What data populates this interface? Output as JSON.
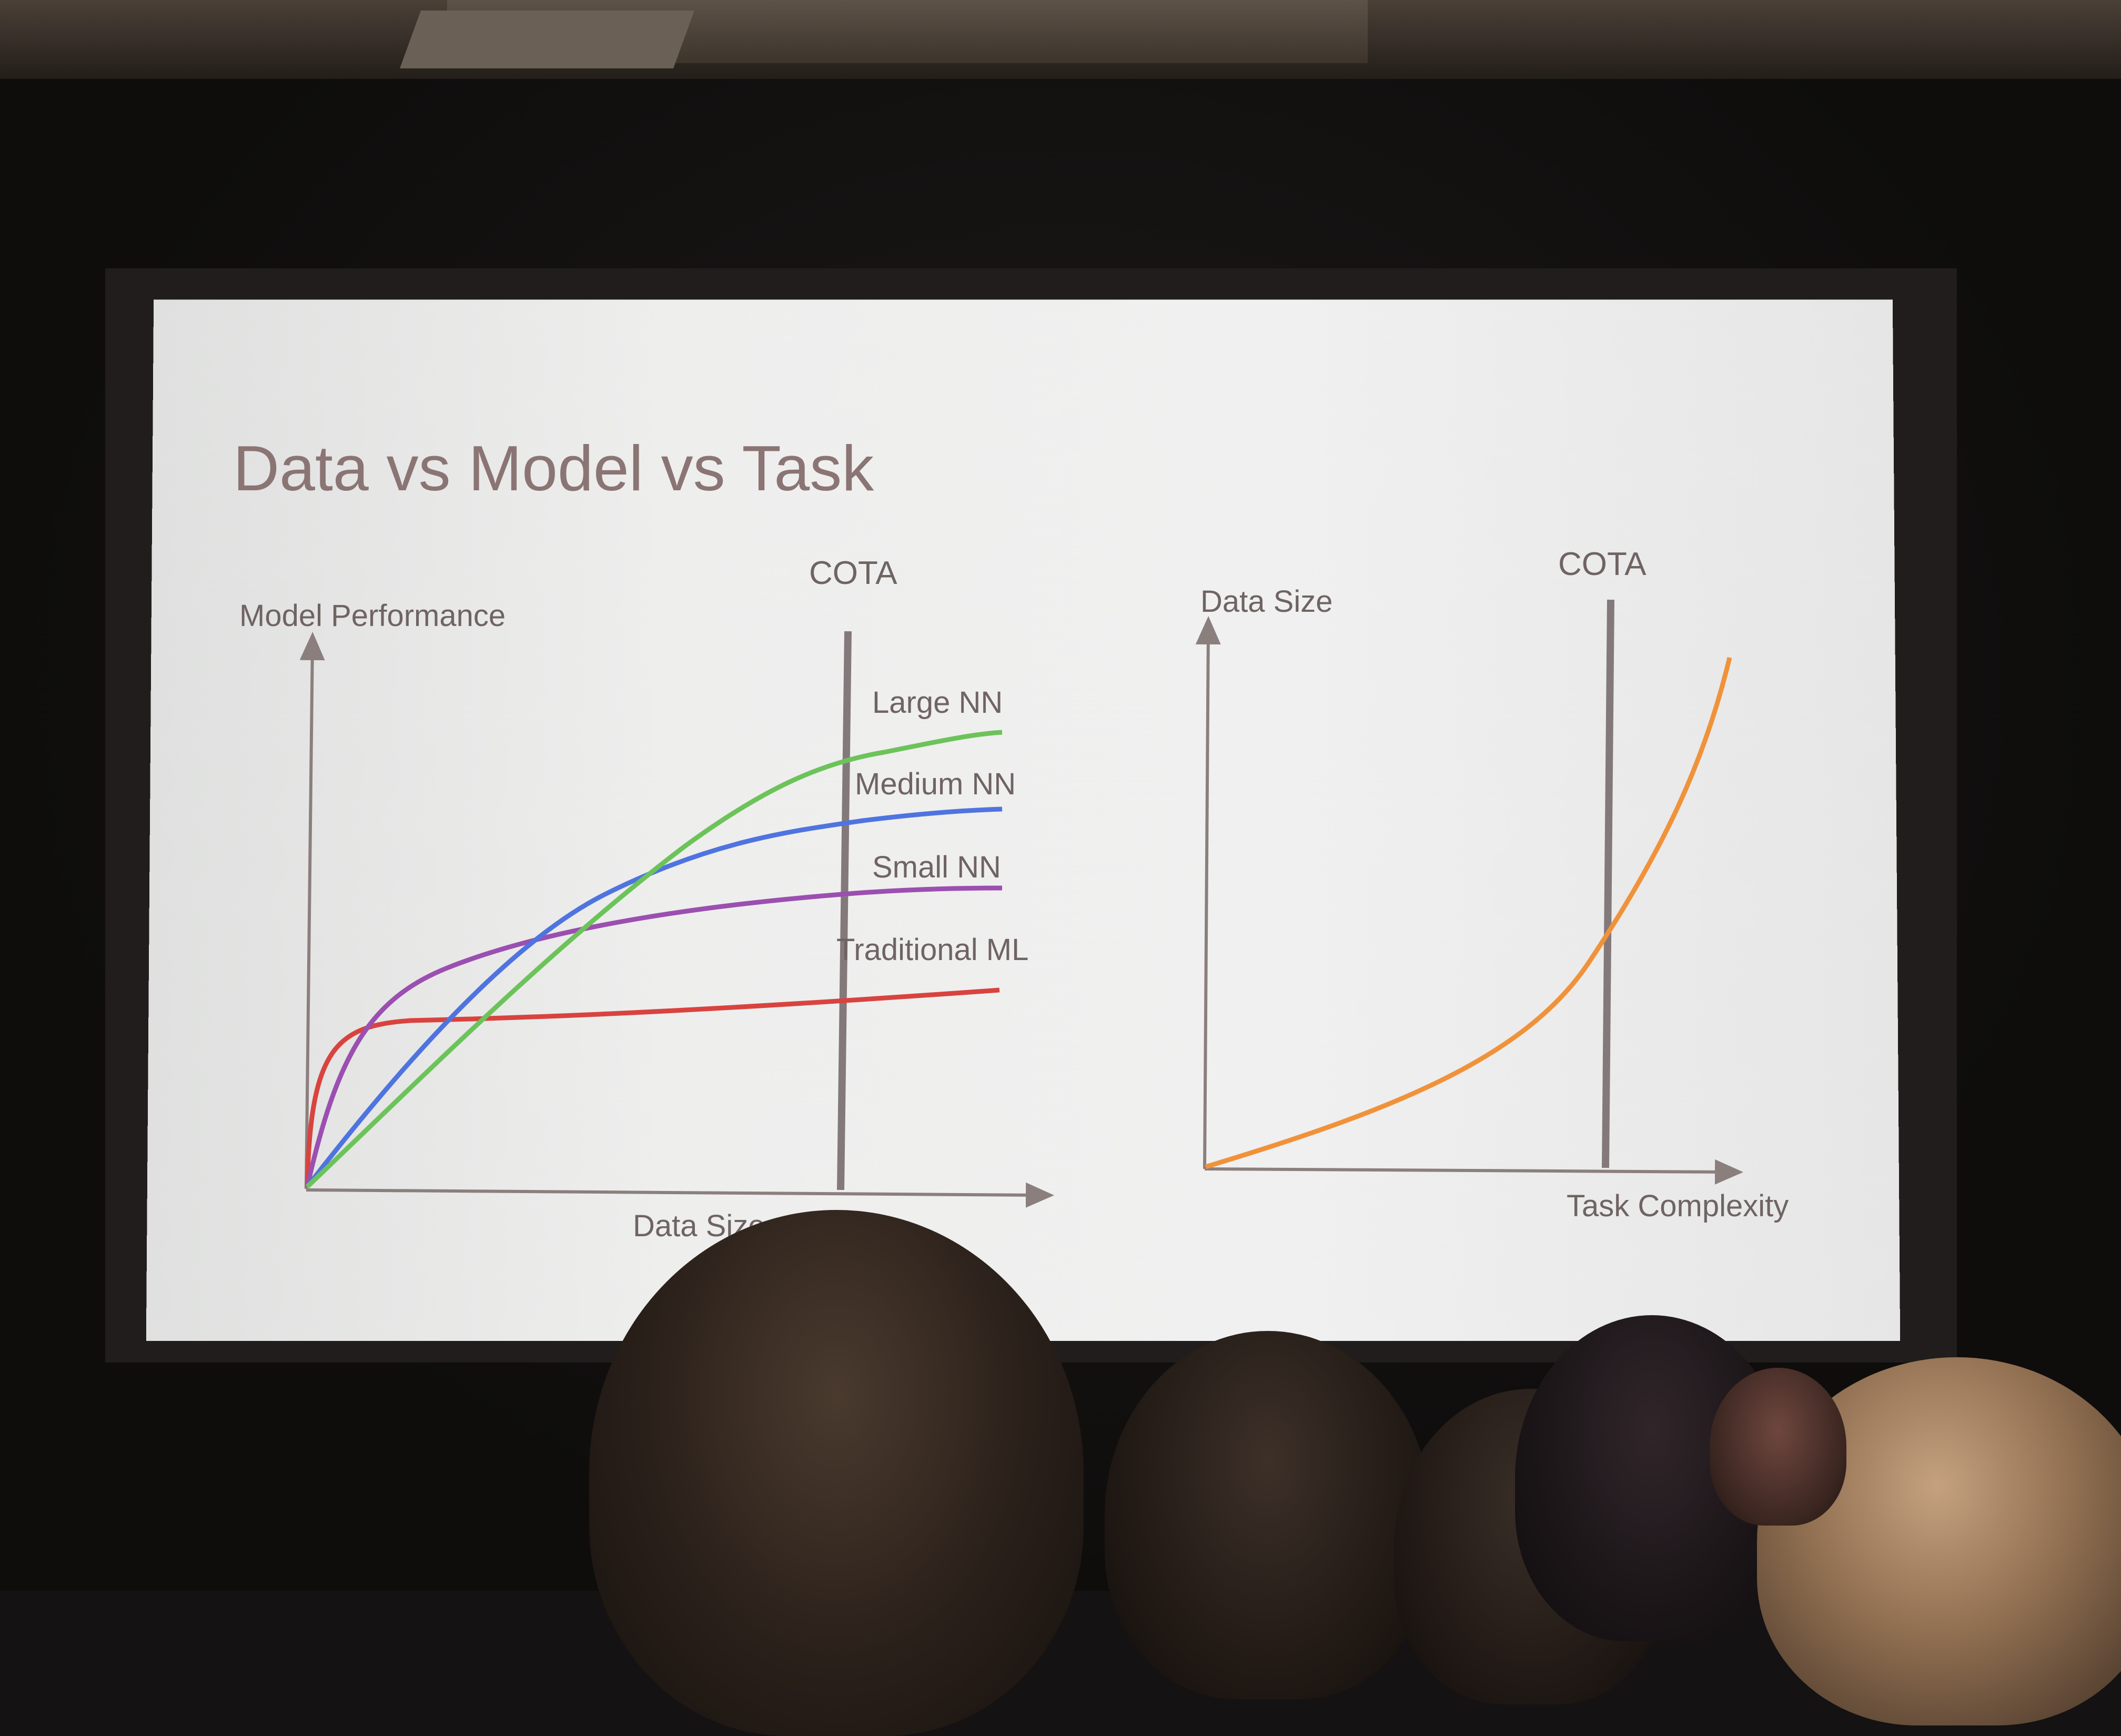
{
  "slide": {
    "title": "Data vs Model vs Task"
  },
  "chart_data": [
    {
      "type": "line",
      "title": "",
      "ylabel": "Model Performance",
      "xlabel": "Data Size",
      "marker_label": "COTA",
      "series": [
        {
          "name": "Large NN",
          "color": "#6cc35a"
        },
        {
          "name": "Medium NN",
          "color": "#4f74e0"
        },
        {
          "name": "Small NN",
          "color": "#9b4fb0"
        },
        {
          "name": "Traditional ML",
          "color": "#d9433f"
        }
      ]
    },
    {
      "type": "line",
      "title": "",
      "ylabel": "Data Size",
      "xlabel": "Task Complexity",
      "marker_label": "COTA",
      "series": [
        {
          "color": "#f0923a"
        }
      ]
    }
  ]
}
